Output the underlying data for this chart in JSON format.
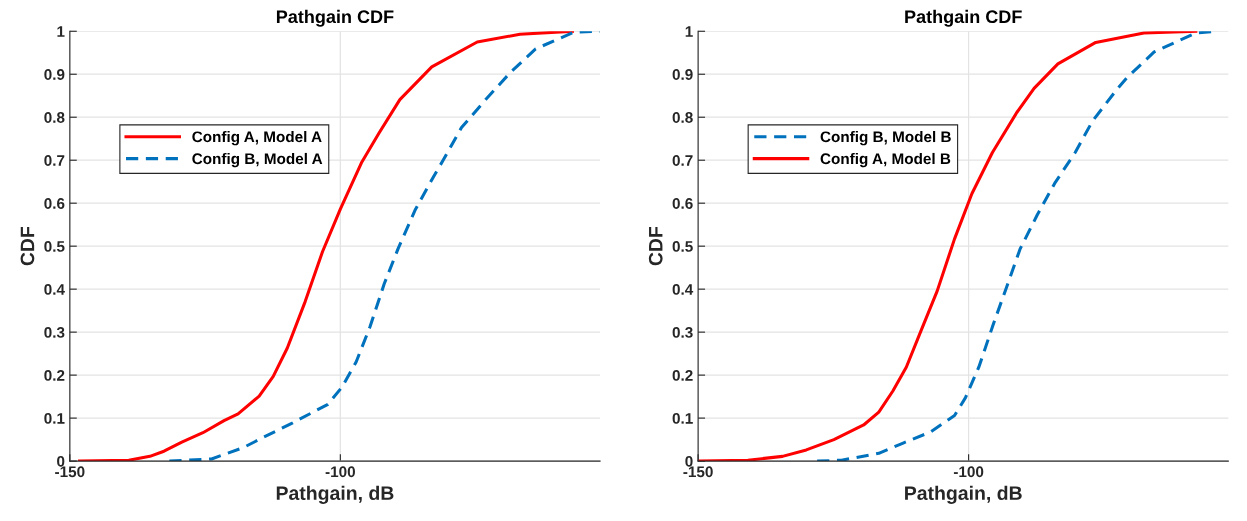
{
  "chart_data": [
    {
      "type": "line",
      "title": "Pathgain CDF",
      "xlabel": "Pathgain, dB",
      "ylabel": "CDF",
      "xlim": [
        -150,
        -52
      ],
      "xticks": [
        -150,
        -100
      ],
      "ylim": [
        0,
        1
      ],
      "yticks": [
        0,
        0.1,
        0.2,
        0.3,
        0.4,
        0.5,
        0.6,
        0.7,
        0.8,
        0.9,
        1
      ],
      "grid": true,
      "legend": "top left",
      "marker": "none",
      "series": [
        {
          "name": "Config A, Model A",
          "color": "#ff0000",
          "line_style": "solid",
          "x": [
            -148.2,
            -139.1,
            -135.2,
            -132.6,
            -129.3,
            -125.4,
            -121.5,
            -118.9,
            -115.0,
            -112.4,
            -109.8,
            -106.5,
            -103.3,
            -100.0,
            -96.1,
            -92.9,
            -89.0,
            -83.1,
            -74.7,
            -66.8,
            -57.1
          ],
          "values": [
            0,
            0.002,
            0.011,
            0.023,
            0.044,
            0.066,
            0.094,
            0.11,
            0.151,
            0.197,
            0.263,
            0.371,
            0.487,
            0.586,
            0.694,
            0.762,
            0.841,
            0.917,
            0.975,
            0.993,
            1.0
          ]
        },
        {
          "name": "Config B, Model A",
          "color": "#0072bd",
          "line_style": "dashed",
          "x": [
            -131.6,
            -123.8,
            -118.0,
            -114.1,
            -108.8,
            -102.3,
            -99.7,
            -97.1,
            -94.5,
            -91.9,
            -89.3,
            -86.1,
            -82.8,
            -80.9,
            -77.6,
            -73.0,
            -68.5,
            -63.9,
            -56.8,
            -52.0
          ],
          "values": [
            0,
            0.005,
            0.031,
            0.056,
            0.089,
            0.132,
            0.172,
            0.23,
            0.313,
            0.412,
            0.495,
            0.586,
            0.661,
            0.702,
            0.776,
            0.843,
            0.905,
            0.959,
            0.998,
            1.0
          ]
        }
      ]
    },
    {
      "type": "line",
      "title": "Pathgain CDF",
      "xlabel": "Pathgain, dB",
      "ylabel": "CDF",
      "xlim": [
        -150,
        -52
      ],
      "xticks": [
        -150,
        -100
      ],
      "ylim": [
        0,
        1
      ],
      "yticks": [
        0,
        0.1,
        0.2,
        0.3,
        0.4,
        0.5,
        0.6,
        0.7,
        0.8,
        0.9,
        1
      ],
      "grid": true,
      "legend": "top left",
      "marker": "none",
      "series": [
        {
          "name": "Config B, Model B",
          "color": "#0072bd",
          "line_style": "dashed",
          "x": [
            -128.0,
            -123.5,
            -116.6,
            -112.1,
            -107.0,
            -102.6,
            -100.6,
            -98.1,
            -95.5,
            -93.0,
            -90.5,
            -87.3,
            -84.1,
            -80.3,
            -77.1,
            -72.7,
            -70.8,
            -65.7,
            -58.0,
            -53.8
          ],
          "values": [
            0,
            0.002,
            0.018,
            0.042,
            0.068,
            0.106,
            0.147,
            0.219,
            0.316,
            0.404,
            0.493,
            0.573,
            0.646,
            0.718,
            0.791,
            0.863,
            0.891,
            0.952,
            0.996,
            1.0
          ]
        },
        {
          "name": "Config A, Model B",
          "color": "#ff0000",
          "line_style": "solid",
          "x": [
            -149.7,
            -140.8,
            -134.4,
            -130.0,
            -124.9,
            -119.4,
            -116.6,
            -114.0,
            -111.5,
            -108.9,
            -105.8,
            -102.6,
            -99.4,
            -95.6,
            -91.1,
            -87.9,
            -83.5,
            -76.5,
            -67.6,
            -58.0
          ],
          "values": [
            0,
            0.002,
            0.011,
            0.026,
            0.05,
            0.084,
            0.114,
            0.163,
            0.219,
            0.3,
            0.396,
            0.517,
            0.622,
            0.718,
            0.811,
            0.867,
            0.924,
            0.974,
            0.996,
            1.0
          ]
        }
      ]
    }
  ]
}
